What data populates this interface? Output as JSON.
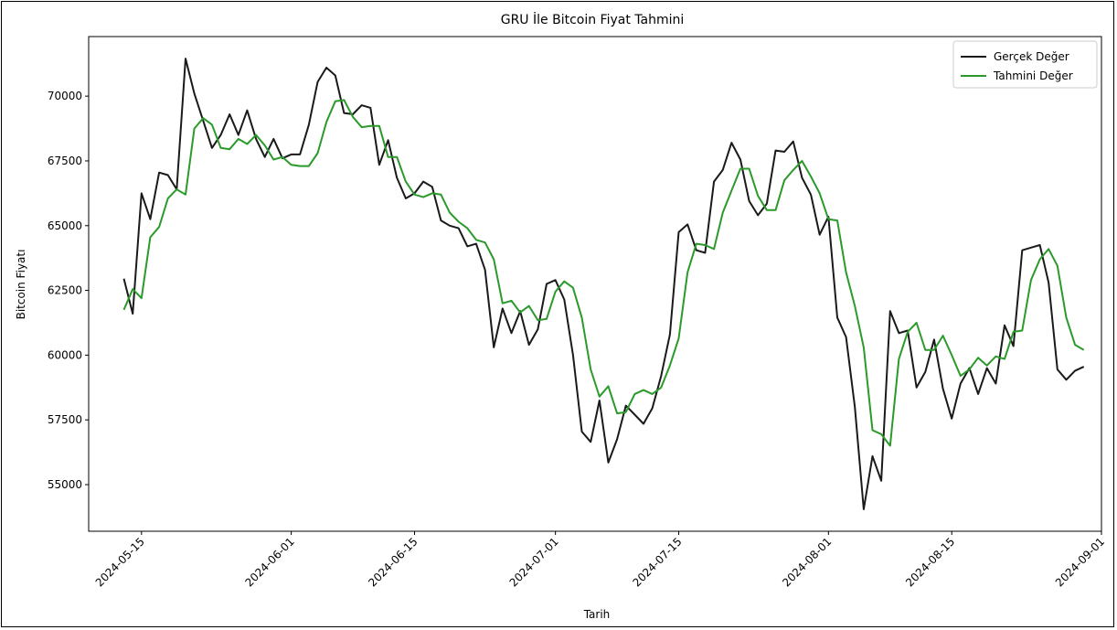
{
  "chart_data": {
    "type": "line",
    "title": "GRU İle Bitcoin Fiyat Tahmini",
    "xlabel": "Tarih",
    "ylabel": "Bitcoin Fiyatı",
    "x_start": "2024-05-13",
    "x_end": "2024-08-29",
    "xlim": [
      "2024-05-09",
      "2024-09-01"
    ],
    "ylim": [
      53200,
      72300
    ],
    "x_ticks": [
      "2024-05-15",
      "2024-06-01",
      "2024-06-15",
      "2024-07-01",
      "2024-07-15",
      "2024-08-01",
      "2024-08-15",
      "2024-09-01"
    ],
    "y_ticks": [
      55000,
      57500,
      60000,
      62500,
      65000,
      67500,
      70000
    ],
    "grid": false,
    "legend_position": "top-right",
    "series": [
      {
        "name": "Gerçek Değer",
        "color": "#1a1a1a",
        "values": [
          62950,
          61600,
          66250,
          65250,
          67050,
          66950,
          66400,
          71450,
          70100,
          69050,
          68000,
          68500,
          69300,
          68500,
          69450,
          68350,
          67650,
          68350,
          67600,
          67750,
          67750,
          68900,
          70550,
          71100,
          70800,
          69350,
          69300,
          69650,
          69550,
          67350,
          68300,
          66850,
          66050,
          66250,
          66700,
          66500,
          65200,
          65000,
          64900,
          64200,
          64300,
          63300,
          60300,
          61800,
          60850,
          61700,
          60400,
          61000,
          62750,
          62900,
          62150,
          60000,
          57050,
          56650,
          58250,
          55850,
          56750,
          58050,
          57700,
          57350,
          57950,
          59200,
          60800,
          64750,
          65050,
          64050,
          63950,
          66700,
          67150,
          68200,
          67550,
          65950,
          65400,
          65850,
          67900,
          67850,
          68250,
          66850,
          66200,
          64650,
          65350,
          61450,
          60700,
          58000,
          54050,
          56100,
          55150,
          61700,
          60850,
          60950,
          58750,
          59350,
          60600,
          58700,
          57550,
          58900,
          59500,
          58500,
          59500,
          58900,
          61150,
          60350,
          64050,
          64150,
          64250,
          62800,
          59450,
          59050,
          59400,
          59550
        ]
      },
      {
        "name": "Tahmini Değer",
        "color": "#2a9a2a",
        "values": [
          61750,
          62550,
          62200,
          64550,
          64950,
          66050,
          66400,
          66200,
          68750,
          69150,
          68900,
          68000,
          67950,
          68350,
          68150,
          68500,
          68100,
          67550,
          67650,
          67350,
          67300,
          67300,
          67800,
          69000,
          69800,
          69850,
          69200,
          68800,
          68850,
          68850,
          67650,
          67650,
          66700,
          66200,
          66100,
          66250,
          66200,
          65500,
          65150,
          64900,
          64450,
          64350,
          63700,
          62000,
          62100,
          61650,
          61900,
          61350,
          61400,
          62450,
          62850,
          62600,
          61450,
          59450,
          58400,
          58800,
          57750,
          57800,
          58500,
          58650,
          58500,
          58750,
          59600,
          60650,
          63200,
          64300,
          64250,
          64100,
          65500,
          66350,
          67200,
          67200,
          66150,
          65600,
          65600,
          66750,
          67150,
          67500,
          66900,
          66250,
          65250,
          65200,
          63200,
          61900,
          60300,
          57100,
          56950,
          56500,
          59850,
          60900,
          61250,
          60200,
          60200,
          60750,
          60000,
          59200,
          59450,
          59900,
          59600,
          59950,
          59850,
          60900,
          60950,
          62900,
          63700,
          64100,
          63450,
          61450,
          60400,
          60200
        ]
      }
    ]
  }
}
